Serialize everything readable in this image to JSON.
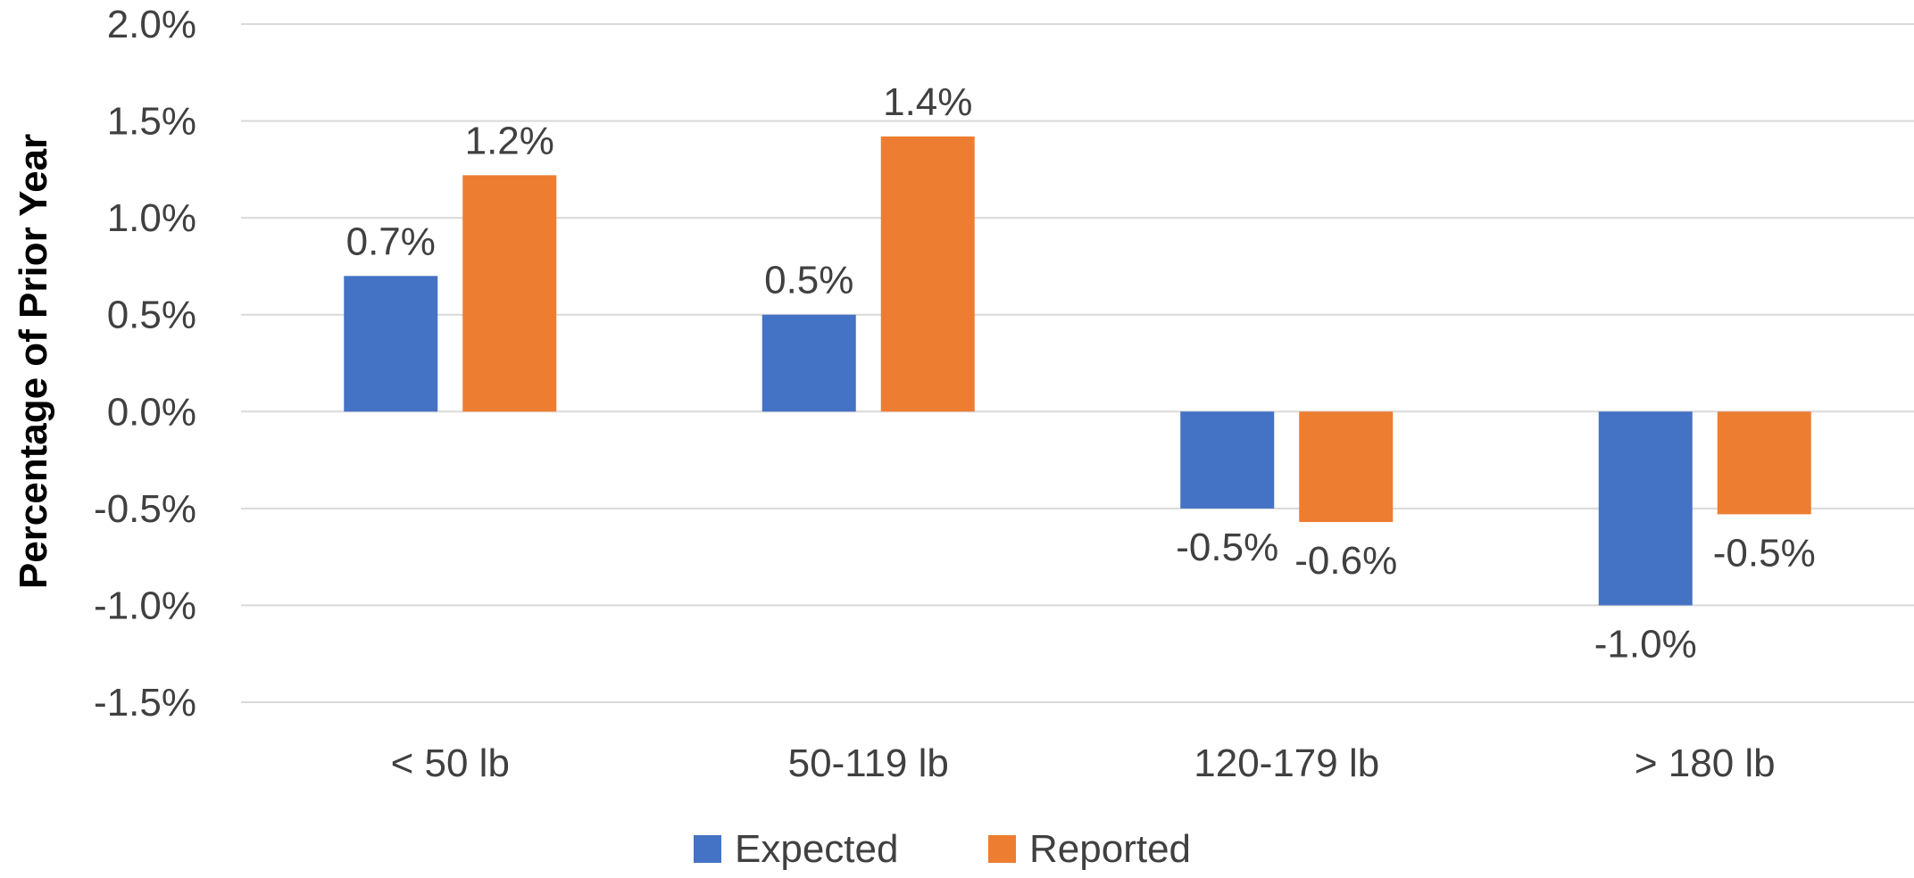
{
  "chart_data": {
    "type": "bar",
    "categories": [
      "< 50 lb",
      "50-119 lb",
      "120-179 lb",
      "> 180 lb"
    ],
    "series": [
      {
        "name": "Expected",
        "color": "#4472C4",
        "values": [
          0.7,
          0.5,
          -0.5,
          -1.0
        ],
        "labels": [
          "0.7%",
          "0.5%",
          "-0.5%",
          "-1.0%"
        ]
      },
      {
        "name": "Reported",
        "color": "#ED7D31",
        "values": [
          1.22,
          1.42,
          -0.57,
          -0.53
        ],
        "labels": [
          "1.2%",
          "1.4%",
          "-0.6%",
          "-0.5%"
        ]
      }
    ],
    "ylabel": "Percentage of Prior Year",
    "xlabel": "",
    "ylim": [
      -1.5,
      2.0
    ],
    "yticks": [
      2.0,
      1.5,
      1.0,
      0.5,
      0.0,
      -0.5,
      -1.0,
      -1.5
    ],
    "ytick_labels": [
      "2.0%",
      "1.5%",
      "1.0%",
      "0.5%",
      "0.0%",
      "-0.5%",
      "-1.0%",
      "-1.5%"
    ],
    "grid": true,
    "legend_position": "bottom"
  }
}
